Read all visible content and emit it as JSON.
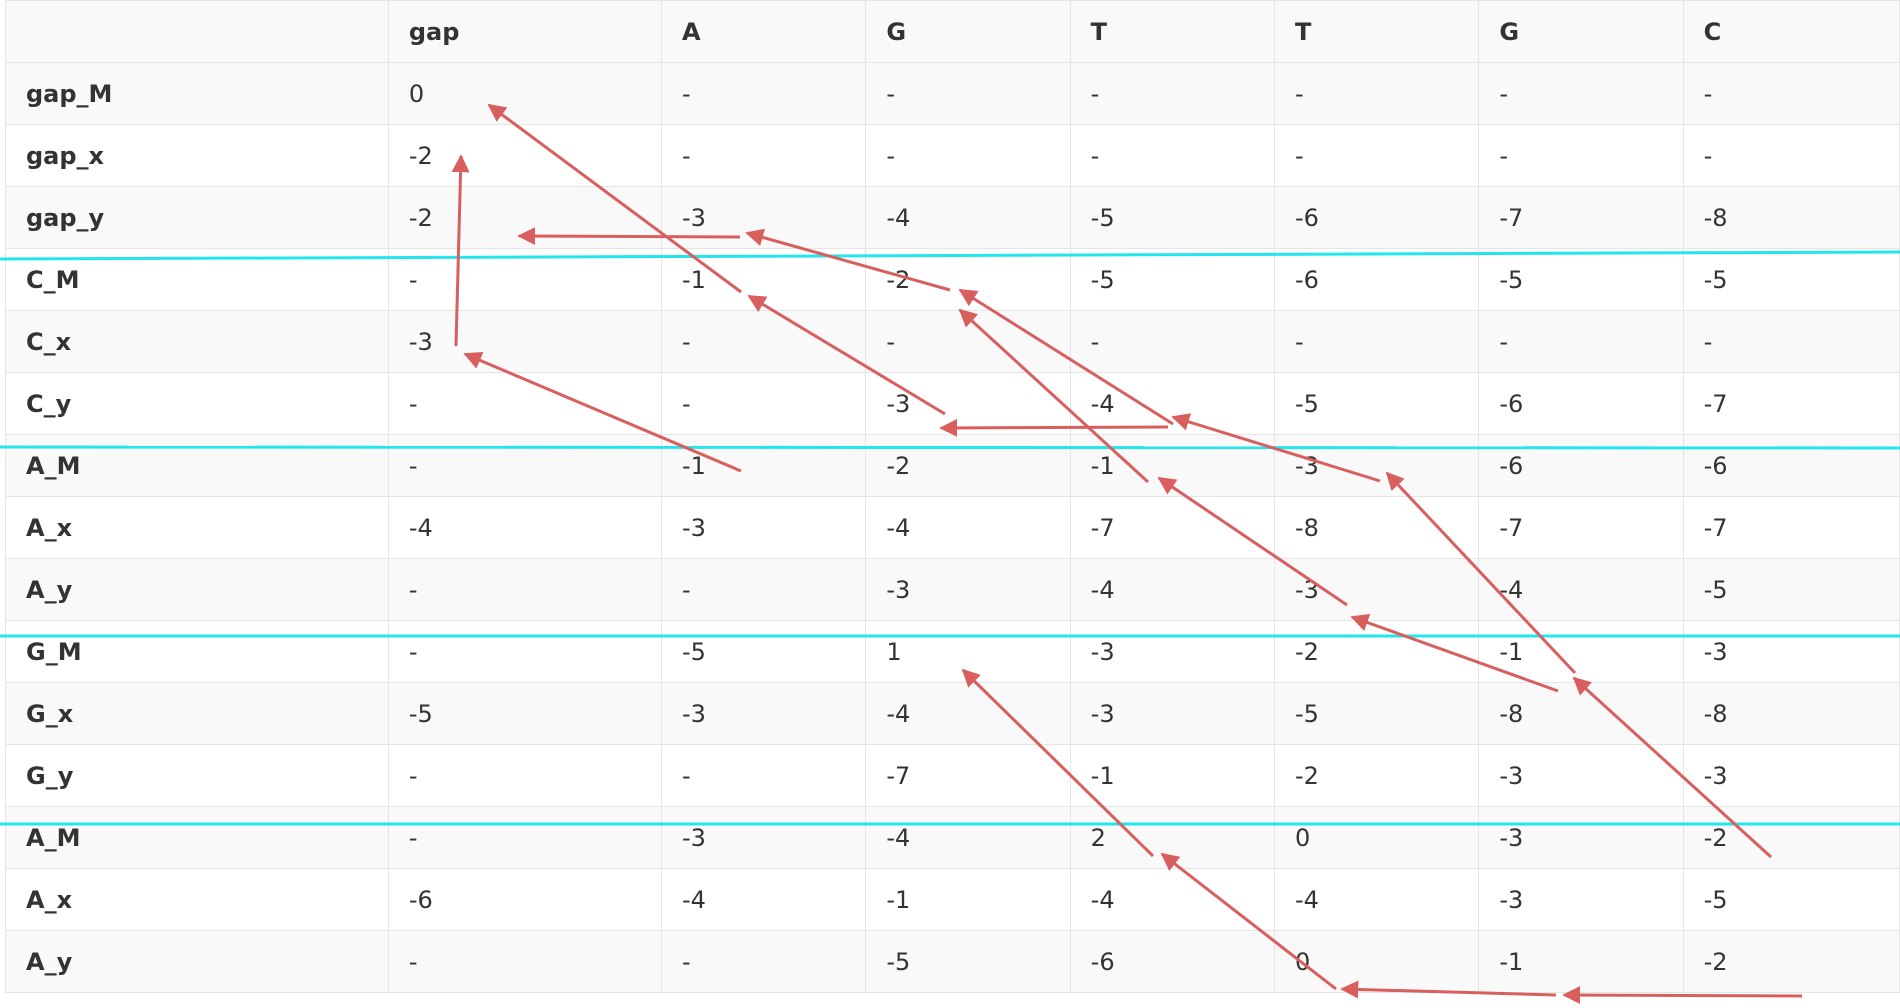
{
  "table": {
    "columns": [
      "",
      "gap",
      "A",
      "G",
      "T",
      "T",
      "G",
      "C"
    ],
    "rows": [
      {
        "label": "gap_M",
        "cells": [
          "0",
          "-",
          "-",
          "-",
          "-",
          "-",
          "-"
        ]
      },
      {
        "label": "gap_x",
        "cells": [
          "-2",
          "-",
          "-",
          "-",
          "-",
          "-",
          "-"
        ]
      },
      {
        "label": "gap_y",
        "cells": [
          "-2",
          "-3",
          "-4",
          "-5",
          "-6",
          "-7",
          "-8"
        ]
      },
      {
        "label": "C_M",
        "cells": [
          "-",
          "-1",
          "-2",
          "-5",
          "-6",
          "-5",
          "-5"
        ]
      },
      {
        "label": "C_x",
        "cells": [
          "-3",
          "-",
          "-",
          "-",
          "-",
          "-",
          "-"
        ]
      },
      {
        "label": "C_y",
        "cells": [
          "-",
          "-",
          "-3",
          "-4",
          "-5",
          "-6",
          "-7"
        ]
      },
      {
        "label": "A_M",
        "cells": [
          "-",
          "-1",
          "-2",
          "-1",
          "-3",
          "-6",
          "-6"
        ]
      },
      {
        "label": "A_x",
        "cells": [
          "-4",
          "-3",
          "-4",
          "-7",
          "-8",
          "-7",
          "-7"
        ]
      },
      {
        "label": "A_y",
        "cells": [
          "-",
          "-",
          "-3",
          "-4",
          "-3",
          "-4",
          "-5"
        ]
      },
      {
        "label": "G_M",
        "cells": [
          "-",
          "-5",
          "1",
          "-3",
          "-2",
          "-1",
          "-3"
        ]
      },
      {
        "label": "G_x",
        "cells": [
          "-5",
          "-3",
          "-4",
          "-3",
          "-5",
          "-8",
          "-8"
        ]
      },
      {
        "label": "G_y",
        "cells": [
          "-",
          "-",
          "-7",
          "-1",
          "-2",
          "-3",
          "-3"
        ]
      },
      {
        "label": "A_M",
        "cells": [
          "-",
          "-3",
          "-4",
          "2",
          "0",
          "-3",
          "-2"
        ]
      },
      {
        "label": "A_x",
        "cells": [
          "-6",
          "-4",
          "-1",
          "-4",
          "-4",
          "-3",
          "-5"
        ]
      },
      {
        "label": "A_y",
        "cells": [
          "-",
          "-",
          "-5",
          "-6",
          "0",
          "-1",
          "-2"
        ]
      }
    ]
  },
  "colors": {
    "arrow": "#d95f5f",
    "separator": "#22e5ee"
  }
}
